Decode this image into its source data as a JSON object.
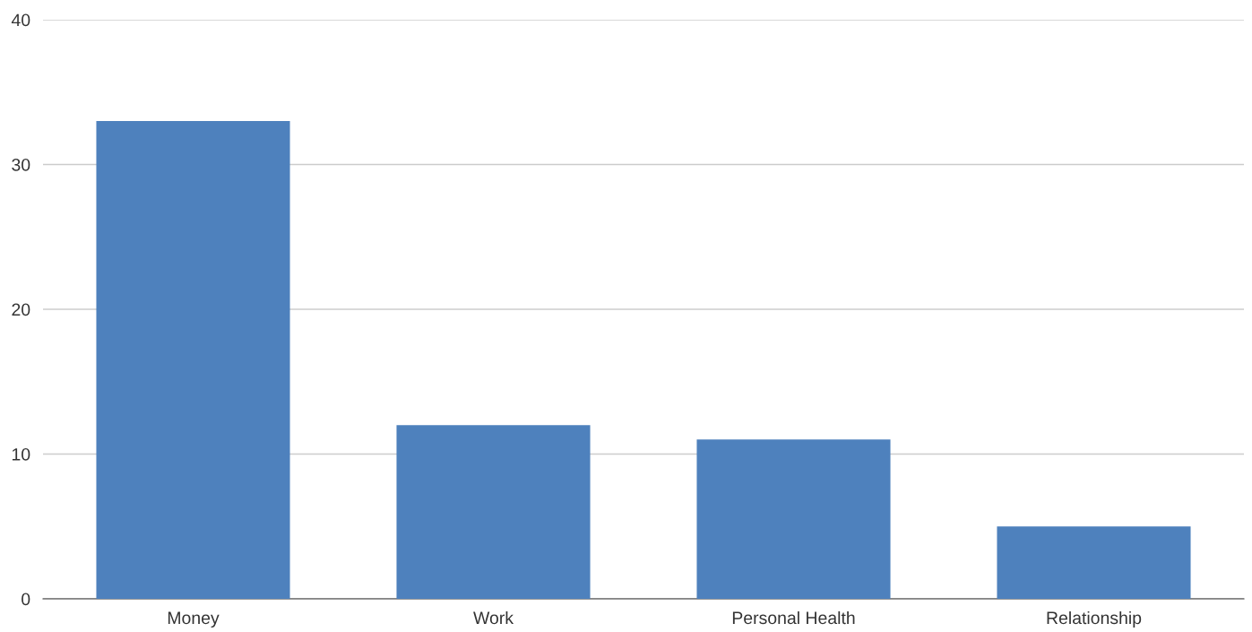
{
  "chart_data": {
    "type": "bar",
    "categories": [
      "Money",
      "Work",
      "Personal Health",
      "Relationship"
    ],
    "values": [
      33,
      12,
      11,
      5
    ],
    "color": "#4e81bd",
    "ylim": [
      0,
      40
    ],
    "yticks": [
      0,
      10,
      20,
      30,
      40
    ],
    "grid": "y",
    "legend": false
  }
}
